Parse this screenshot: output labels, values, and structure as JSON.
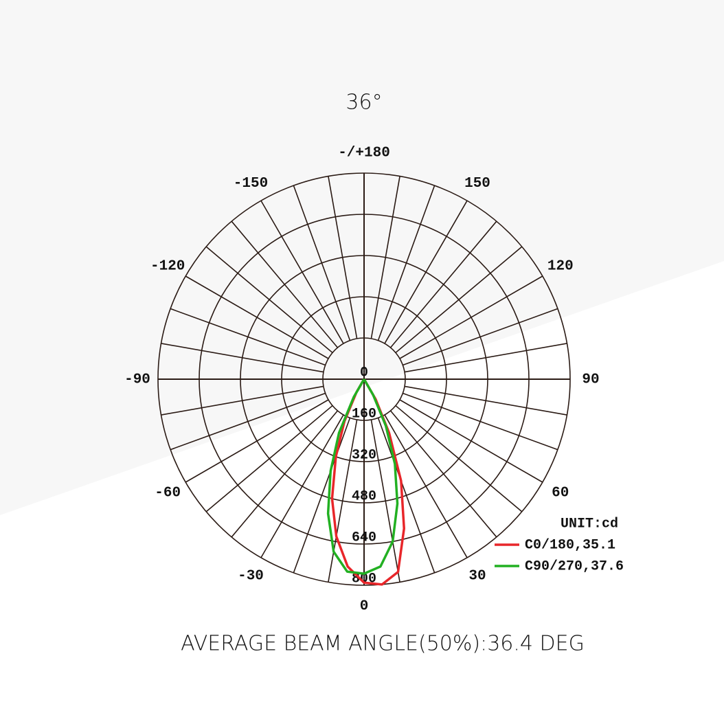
{
  "chart_data": {
    "type": "polar",
    "title": "36°",
    "footer": "AVERAGE BEAM ANGLE(50%):36.4 DEG",
    "unit_label": "UNIT:cd",
    "rlim": [
      0,
      800
    ],
    "rticks": [
      0,
      160,
      320,
      480,
      640,
      800
    ],
    "angle_ticks": [
      {
        "value": 180,
        "label": "-/+180"
      },
      150,
      120,
      90,
      60,
      30,
      0,
      -30,
      -60,
      -90,
      -120,
      -150
    ],
    "x": [
      -35,
      -30,
      -25,
      -20,
      -15,
      -10,
      -5,
      0,
      5,
      10,
      15,
      20,
      25,
      30,
      35
    ],
    "series": [
      {
        "name": "C0/180,35.1",
        "color": "#e8262a",
        "values": [
          0,
          60,
          180,
          320,
          480,
          620,
          730,
          790,
          800,
          760,
          600,
          420,
          230,
          90,
          0
        ]
      },
      {
        "name": "C90/270,37.6",
        "color": "#22b022",
        "values": [
          0,
          80,
          230,
          380,
          540,
          680,
          750,
          755,
          730,
          640,
          500,
          350,
          200,
          70,
          0
        ]
      }
    ]
  }
}
